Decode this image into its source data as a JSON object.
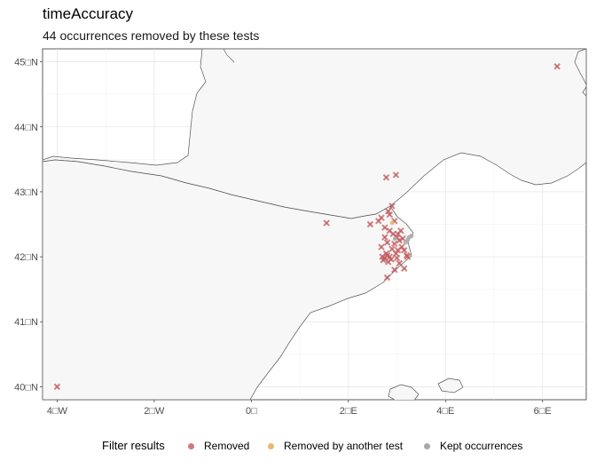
{
  "title": "timeAccuracy",
  "subtitle": "44 occurrences removed by these tests",
  "axes": {
    "y_ticks": [
      "40□N",
      "41□N",
      "42□N",
      "43□N",
      "44□N",
      "45□N"
    ],
    "x_ticks": [
      "4□W",
      "2□W",
      "0□",
      "2□E",
      "4□E",
      "6□E"
    ]
  },
  "legend": {
    "title": "Filter results",
    "items": [
      {
        "label": "Removed",
        "color": "#c0585b"
      },
      {
        "label": "Removed by another test",
        "color": "#e8b96a"
      },
      {
        "label": "Kept occurrences",
        "color": "#a9a9a9"
      }
    ]
  },
  "chart_data": {
    "type": "scatter",
    "title": "timeAccuracy",
    "subtitle": "44 occurrences removed by these tests",
    "xlim": [
      -4.3,
      6.9
    ],
    "ylim": [
      39.8,
      45.2
    ],
    "x_ticks": [
      -4,
      -2,
      0,
      2,
      4,
      6
    ],
    "y_ticks": [
      40,
      41,
      42,
      43,
      44,
      45
    ],
    "grid": true,
    "legend_position": "bottom",
    "series": [
      {
        "name": "Removed",
        "color": "#c0585b",
        "marker": "cross",
        "points": [
          [
            -4.0,
            40.0
          ],
          [
            6.3,
            44.93
          ],
          [
            1.55,
            42.52
          ],
          [
            2.45,
            42.5
          ],
          [
            2.62,
            42.55
          ],
          [
            2.68,
            42.6
          ],
          [
            2.75,
            42.45
          ],
          [
            2.82,
            42.7
          ],
          [
            2.78,
            43.22
          ],
          [
            2.98,
            43.26
          ],
          [
            2.9,
            42.78
          ],
          [
            2.85,
            42.65
          ],
          [
            2.92,
            42.35
          ],
          [
            2.95,
            42.55
          ],
          [
            3.0,
            42.3
          ],
          [
            3.05,
            42.25
          ],
          [
            2.75,
            42.3
          ],
          [
            2.8,
            42.22
          ],
          [
            2.95,
            42.2
          ],
          [
            3.1,
            42.15
          ],
          [
            3.02,
            42.1
          ],
          [
            2.98,
            42.05
          ],
          [
            2.85,
            42.0
          ],
          [
            2.8,
            42.02
          ],
          [
            2.75,
            41.98
          ],
          [
            2.72,
            41.95
          ],
          [
            2.82,
            41.92
          ],
          [
            2.88,
            41.96
          ],
          [
            2.7,
            42.0
          ],
          [
            2.78,
            42.05
          ],
          [
            3.12,
            42.28
          ],
          [
            3.15,
            42.1
          ],
          [
            3.2,
            42.02
          ],
          [
            3.05,
            41.9
          ],
          [
            3.15,
            41.82
          ],
          [
            3.22,
            42.0
          ],
          [
            2.95,
            41.8
          ],
          [
            2.8,
            41.68
          ],
          [
            3.02,
            42.35
          ],
          [
            3.08,
            42.4
          ],
          [
            2.68,
            42.15
          ],
          [
            2.85,
            42.4
          ],
          [
            2.9,
            42.12
          ],
          [
            3.0,
            41.98
          ]
        ]
      },
      {
        "name": "Removed by another test",
        "color": "#e8b96a",
        "marker": "dot",
        "points": [
          [
            2.9,
            42.52
          ]
        ]
      },
      {
        "name": "Kept occurrences",
        "color": "#a9a9a9",
        "marker": "dot",
        "points": [
          [
            3.25,
            42.3
          ],
          [
            3.22,
            42.26
          ],
          [
            3.3,
            42.32
          ],
          [
            3.18,
            42.22
          ],
          [
            2.96,
            42.28
          ]
        ]
      }
    ]
  }
}
